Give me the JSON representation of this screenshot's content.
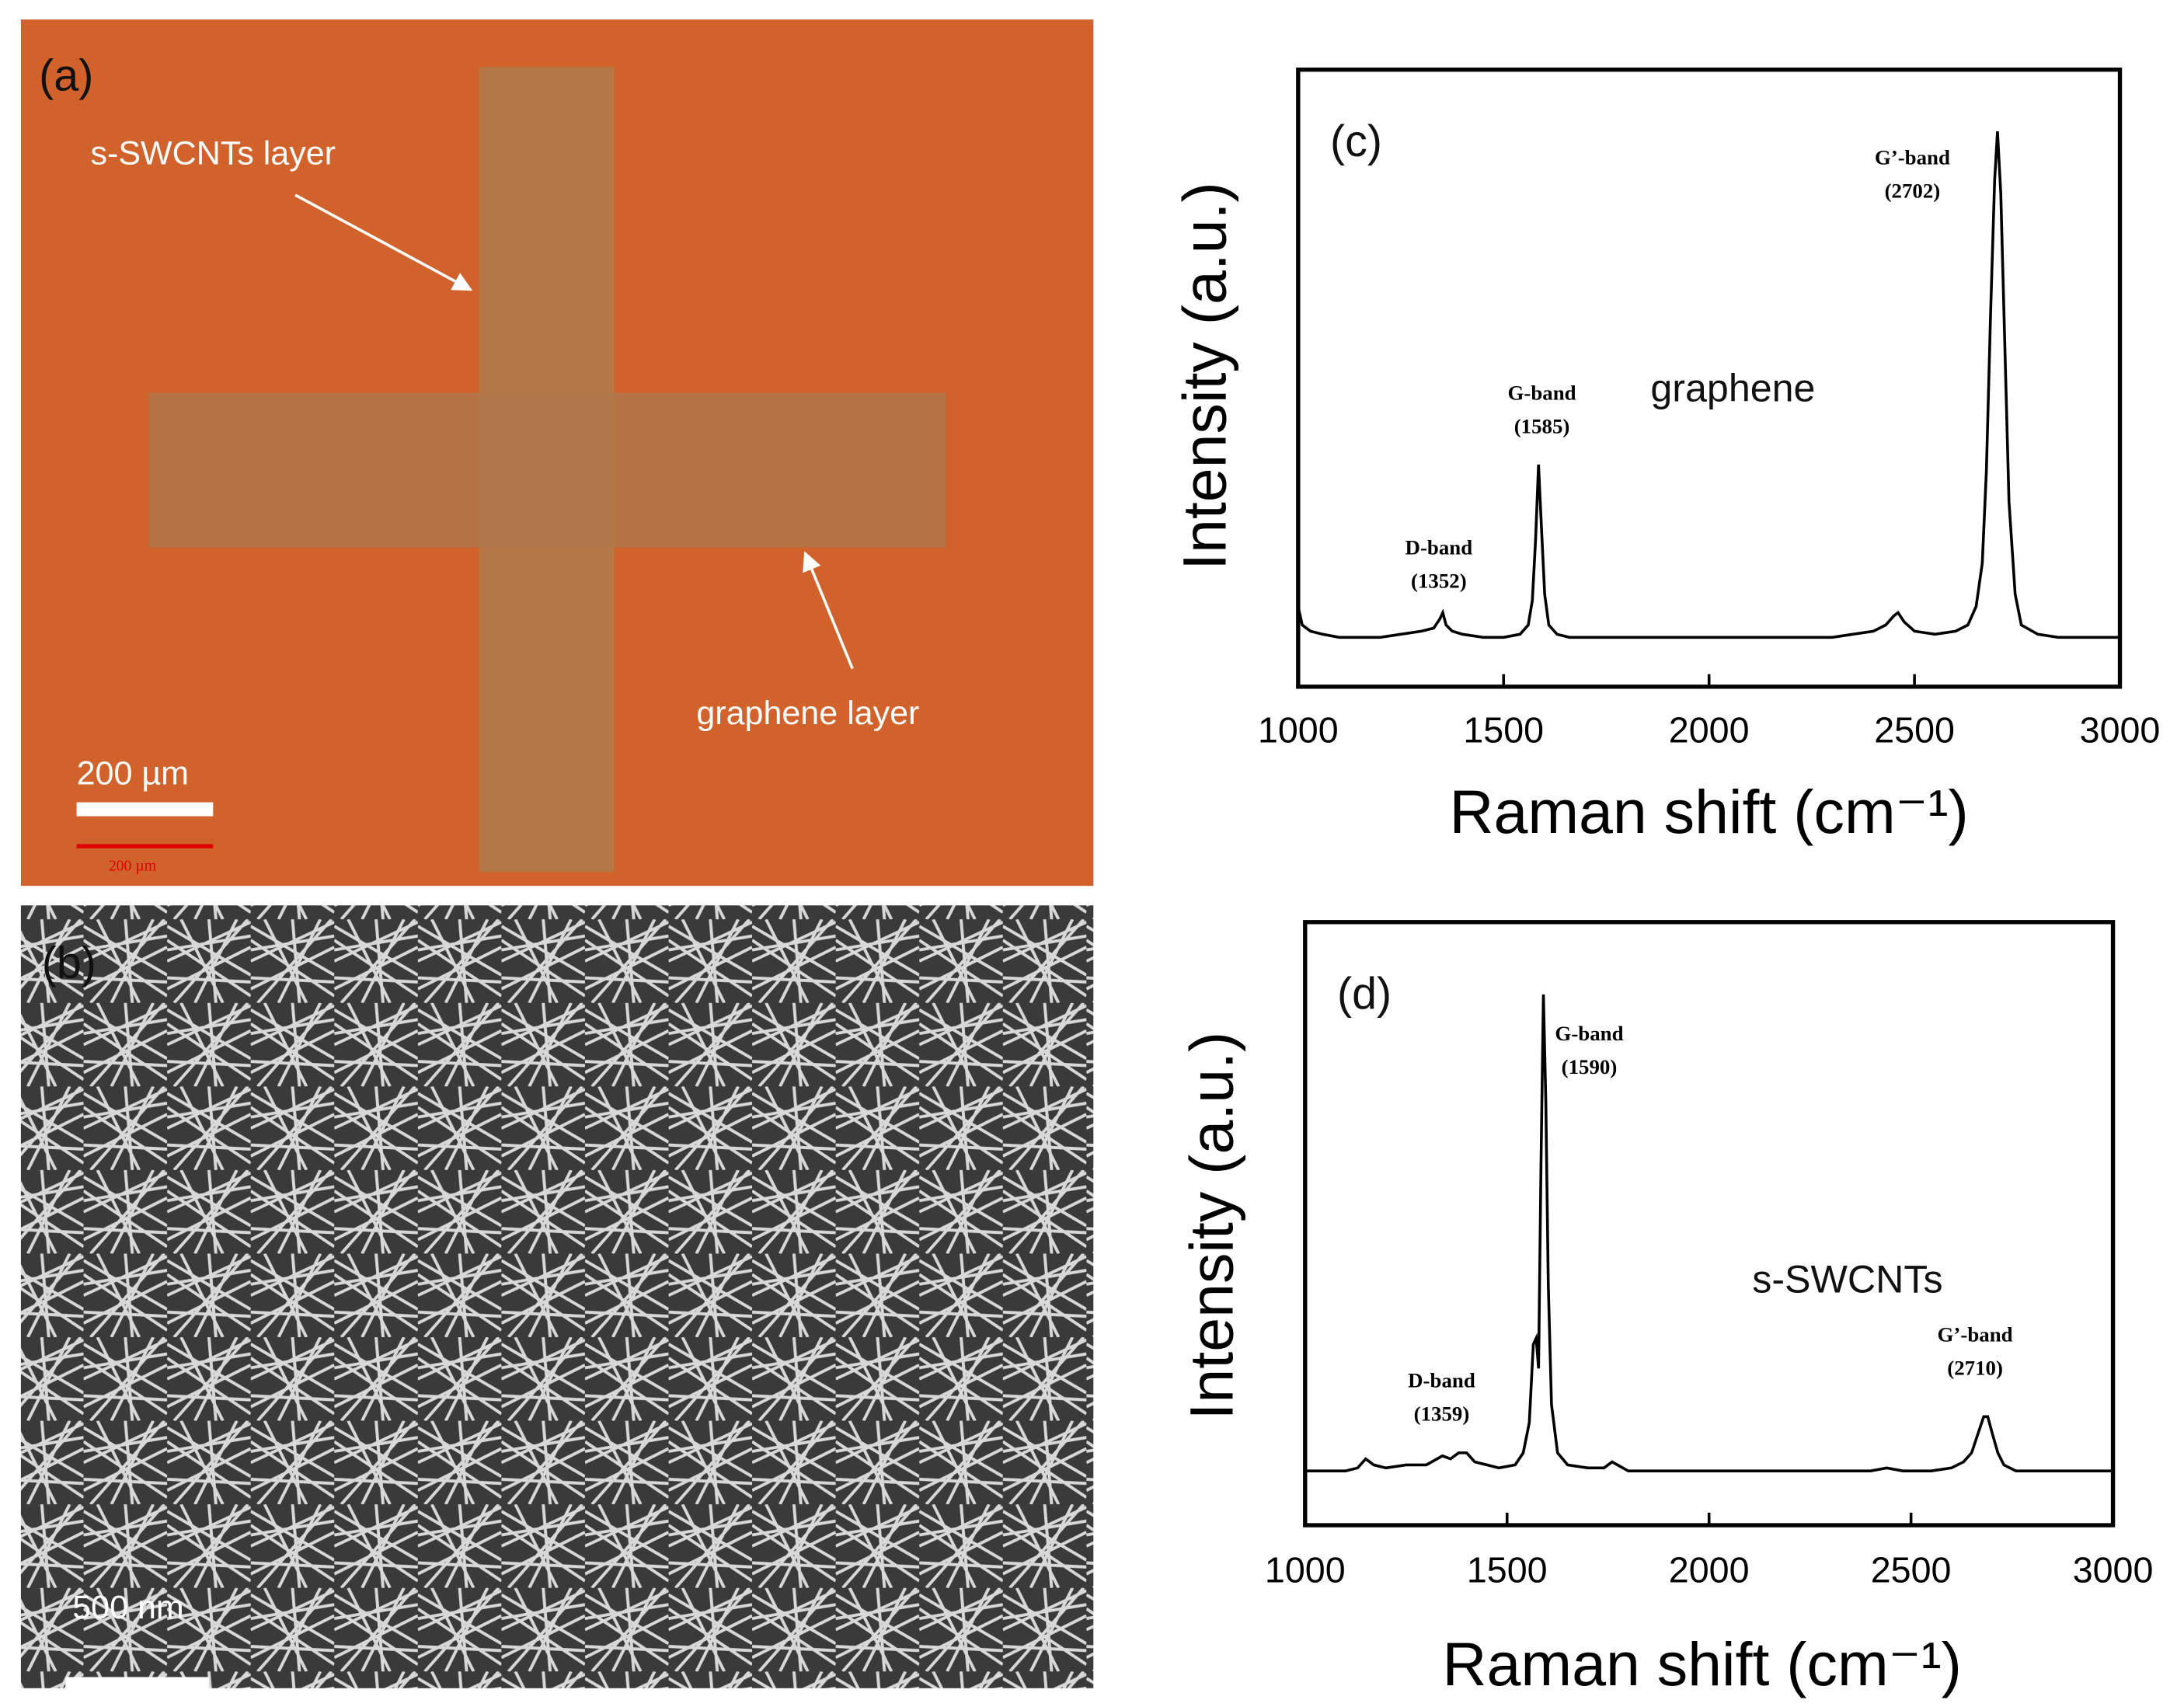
{
  "images": [
    {
      "panel_label": "(a)",
      "labels": [
        "s-SWCNTs layer",
        "graphene layer"
      ],
      "scale_bars": [
        "200 µm",
        "200 µm"
      ]
    },
    {
      "panel_label": "(b)",
      "scale_bars": [
        "500 nm"
      ]
    }
  ],
  "chart_data": [
    {
      "type": "line",
      "panel_label": "(c)",
      "sample": "graphene",
      "xlabel": "Raman shift (cm⁻¹)",
      "ylabel": "Intensity (a.u.)",
      "xlim": [
        1000,
        3000
      ],
      "xticks": [
        1000,
        1500,
        2000,
        2500,
        3000
      ],
      "ylim": [
        0,
        100
      ],
      "color": "#000000",
      "x": [
        1000,
        1010,
        1030,
        1060,
        1100,
        1150,
        1200,
        1250,
        1300,
        1330,
        1345,
        1352,
        1360,
        1375,
        1400,
        1450,
        1500,
        1540,
        1560,
        1570,
        1578,
        1585,
        1592,
        1600,
        1610,
        1630,
        1660,
        1700,
        1750,
        1800,
        1850,
        1900,
        1950,
        2000,
        2050,
        2100,
        2150,
        2200,
        2250,
        2300,
        2350,
        2400,
        2430,
        2450,
        2460,
        2475,
        2500,
        2550,
        2600,
        2630,
        2650,
        2665,
        2675,
        2685,
        2695,
        2702,
        2710,
        2720,
        2730,
        2745,
        2760,
        2800,
        2850,
        2900,
        2950,
        3000
      ],
      "values": [
        13,
        10,
        9,
        8.5,
        8,
        8,
        8,
        8.5,
        9,
        9.5,
        11,
        12,
        10,
        9,
        8.5,
        8,
        8,
        8.5,
        10,
        14,
        24,
        36,
        26,
        15,
        10,
        8.5,
        8,
        8,
        8,
        8,
        8,
        8,
        8,
        8,
        8,
        8,
        8,
        8,
        8,
        8,
        8.5,
        9,
        10,
        11.5,
        12,
        10.5,
        9,
        8.5,
        9,
        10,
        13,
        20,
        35,
        60,
        82,
        90,
        80,
        55,
        30,
        15,
        10,
        8.5,
        8,
        8,
        8,
        8
      ],
      "annotations": [
        {
          "label": "D-band",
          "peak": "(1352)"
        },
        {
          "label": "G-band",
          "peak": "(1585)"
        },
        {
          "label": "G’-band",
          "peak": "(2702)"
        }
      ]
    },
    {
      "type": "line",
      "panel_label": "(d)",
      "sample": "s-SWCNTs",
      "xlabel": "Raman shift (cm⁻¹)",
      "ylabel": "Intensity (a.u.)",
      "xlim": [
        1000,
        3000
      ],
      "xticks": [
        1000,
        1500,
        2000,
        2500,
        3000
      ],
      "ylim": [
        0,
        100
      ],
      "color": "#000000",
      "x": [
        1000,
        1050,
        1100,
        1130,
        1150,
        1170,
        1200,
        1250,
        1300,
        1340,
        1360,
        1380,
        1400,
        1420,
        1450,
        1480,
        1520,
        1540,
        1555,
        1565,
        1572,
        1578,
        1584,
        1590,
        1596,
        1602,
        1610,
        1625,
        1650,
        1700,
        1740,
        1760,
        1800,
        1900,
        2000,
        2100,
        2200,
        2300,
        2400,
        2440,
        2480,
        2550,
        2600,
        2630,
        2650,
        2665,
        2680,
        2690,
        2700,
        2715,
        2730,
        2760,
        2800,
        2900,
        3000
      ],
      "values": [
        9,
        9,
        9,
        9.5,
        11,
        10,
        9.5,
        10,
        10,
        11.5,
        11,
        12,
        12,
        10.5,
        10,
        9.5,
        10,
        12,
        17,
        30,
        31,
        26,
        60,
        88,
        70,
        40,
        20,
        12,
        10,
        9.5,
        9.5,
        10.5,
        9,
        9,
        9,
        9,
        9,
        9,
        9,
        9.5,
        9,
        9,
        9.5,
        10.5,
        12,
        15,
        18,
        18,
        15.5,
        12,
        10,
        9,
        9,
        9,
        9
      ],
      "annotations": [
        {
          "label": "D-band",
          "peak": "(1359)"
        },
        {
          "label": "G-band",
          "peak": "(1590)"
        },
        {
          "label": "G’-band",
          "peak": "(2710)"
        }
      ]
    }
  ]
}
